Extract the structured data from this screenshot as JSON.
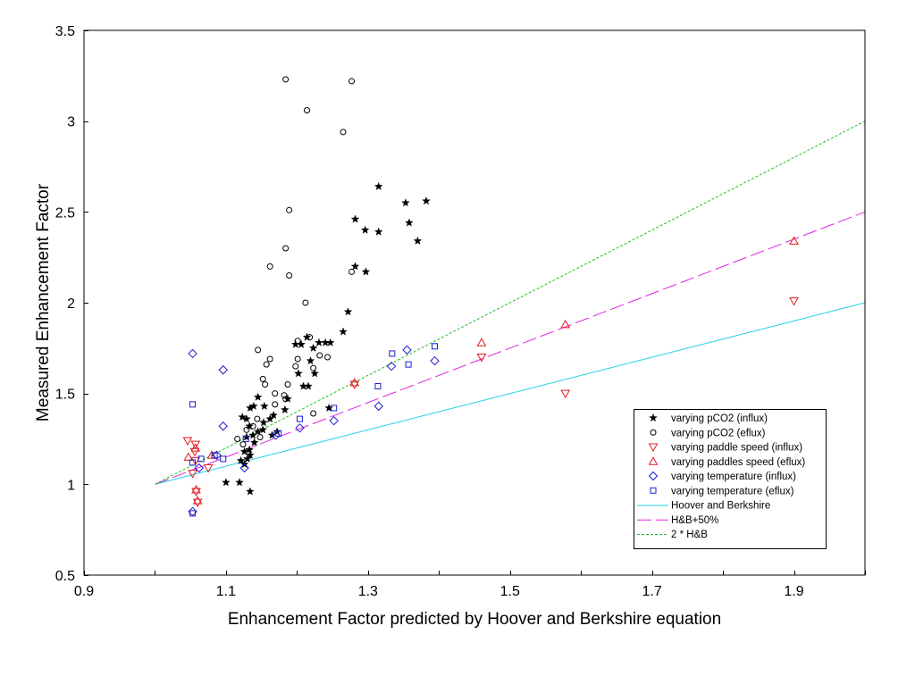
{
  "chart_data": {
    "type": "scatter",
    "xlabel": "Enhancement Factor predicted by Hoover and Berkshire equation",
    "ylabel": "Measured Enhancement Factor",
    "xlim": [
      0.9,
      2.0
    ],
    "ylim": [
      0.5,
      3.5
    ],
    "x_ticks": [
      0.9,
      1.1,
      1.3,
      1.5,
      1.7,
      1.9
    ],
    "y_ticks": [
      0.5,
      1,
      1.5,
      2,
      2.5,
      3,
      3.5
    ],
    "grid": false,
    "legend_position": "bottom-right",
    "series": [
      {
        "name": "varying pCO2 (influx)",
        "marker": "star",
        "color": "#000000",
        "points": [
          [
            1.315,
            2.64
          ],
          [
            1.353,
            2.55
          ],
          [
            1.382,
            2.56
          ],
          [
            1.358,
            2.44
          ],
          [
            1.282,
            2.46
          ],
          [
            1.296,
            2.4
          ],
          [
            1.315,
            2.39
          ],
          [
            1.37,
            2.34
          ],
          [
            1.282,
            2.2
          ],
          [
            1.297,
            2.17
          ],
          [
            1.272,
            1.95
          ],
          [
            1.265,
            1.84
          ],
          [
            1.247,
            1.78
          ],
          [
            1.24,
            1.78
          ],
          [
            1.231,
            1.78
          ],
          [
            1.223,
            1.75
          ],
          [
            1.214,
            1.81
          ],
          [
            1.206,
            1.77
          ],
          [
            1.198,
            1.77
          ],
          [
            1.219,
            1.68
          ],
          [
            1.225,
            1.61
          ],
          [
            1.202,
            1.61
          ],
          [
            1.209,
            1.54
          ],
          [
            1.216,
            1.54
          ],
          [
            1.187,
            1.47
          ],
          [
            1.183,
            1.41
          ],
          [
            1.245,
            1.42
          ],
          [
            1.167,
            1.38
          ],
          [
            1.162,
            1.36
          ],
          [
            1.154,
            1.43
          ],
          [
            1.145,
            1.48
          ],
          [
            1.139,
            1.43
          ],
          [
            1.134,
            1.42
          ],
          [
            1.129,
            1.36
          ],
          [
            1.123,
            1.37
          ],
          [
            1.133,
            1.32
          ],
          [
            1.138,
            1.27
          ],
          [
            1.145,
            1.29
          ],
          [
            1.152,
            1.3
          ],
          [
            1.153,
            1.34
          ],
          [
            1.165,
            1.27
          ],
          [
            1.172,
            1.29
          ],
          [
            1.129,
            1.26
          ],
          [
            1.14,
            1.23
          ],
          [
            1.133,
            1.19
          ],
          [
            1.126,
            1.18
          ],
          [
            1.134,
            1.16
          ],
          [
            1.13,
            1.14
          ],
          [
            1.121,
            1.13
          ],
          [
            1.126,
            1.11
          ],
          [
            1.1,
            1.01
          ],
          [
            1.119,
            1.01
          ],
          [
            1.134,
            0.96
          ]
        ]
      },
      {
        "name": "varying pCO2 (eflux)",
        "marker": "circle",
        "color": "#000000",
        "points": [
          [
            1.184,
            3.23
          ],
          [
            1.277,
            3.22
          ],
          [
            1.214,
            3.06
          ],
          [
            1.265,
            2.94
          ],
          [
            1.189,
            2.51
          ],
          [
            1.184,
            2.3
          ],
          [
            1.162,
            2.2
          ],
          [
            1.189,
            2.15
          ],
          [
            1.277,
            2.17
          ],
          [
            1.212,
            2.0
          ],
          [
            1.201,
            1.79
          ],
          [
            1.218,
            1.81
          ],
          [
            1.145,
            1.74
          ],
          [
            1.162,
            1.69
          ],
          [
            1.201,
            1.69
          ],
          [
            1.232,
            1.71
          ],
          [
            1.243,
            1.7
          ],
          [
            1.223,
            1.64
          ],
          [
            1.157,
            1.66
          ],
          [
            1.198,
            1.65
          ],
          [
            1.152,
            1.58
          ],
          [
            1.155,
            1.55
          ],
          [
            1.187,
            1.55
          ],
          [
            1.169,
            1.5
          ],
          [
            1.182,
            1.49
          ],
          [
            1.184,
            1.47
          ],
          [
            1.169,
            1.44
          ],
          [
            1.223,
            1.39
          ],
          [
            1.144,
            1.36
          ],
          [
            1.129,
            1.3
          ],
          [
            1.116,
            1.25
          ],
          [
            1.148,
            1.26
          ],
          [
            1.124,
            1.22
          ],
          [
            1.138,
            1.32
          ]
        ]
      },
      {
        "name": "varying paddle speed (influx)",
        "marker": "triangle-down",
        "color": "#E41A1C",
        "points": [
          [
            1.046,
            1.24
          ],
          [
            1.057,
            1.22
          ],
          [
            1.056,
            1.18
          ],
          [
            1.057,
            1.13
          ],
          [
            1.053,
            1.06
          ],
          [
            1.075,
            1.09
          ],
          [
            1.058,
            0.96
          ],
          [
            1.06,
            0.9
          ],
          [
            1.281,
            1.55
          ],
          [
            1.46,
            1.7
          ],
          [
            1.578,
            1.5
          ],
          [
            1.9,
            2.01
          ]
        ]
      },
      {
        "name": "varying paddles speed (eflux)",
        "marker": "triangle-up",
        "color": "#E41A1C",
        "points": [
          [
            1.047,
            1.15
          ],
          [
            1.057,
            1.2
          ],
          [
            1.08,
            1.16
          ],
          [
            1.058,
            0.97
          ],
          [
            1.06,
            0.91
          ],
          [
            1.281,
            1.56
          ],
          [
            1.46,
            1.78
          ],
          [
            1.578,
            1.88
          ],
          [
            1.9,
            2.34
          ]
        ]
      },
      {
        "name": "varying temperature (influx)",
        "marker": "diamond",
        "color": "#1C1CCF",
        "points": [
          [
            1.053,
            1.72
          ],
          [
            1.096,
            1.63
          ],
          [
            1.096,
            1.32
          ],
          [
            1.087,
            1.16
          ],
          [
            1.062,
            1.09
          ],
          [
            1.126,
            1.09
          ],
          [
            1.053,
            0.85
          ],
          [
            1.17,
            1.27
          ],
          [
            1.204,
            1.31
          ],
          [
            1.252,
            1.35
          ],
          [
            1.315,
            1.43
          ],
          [
            1.333,
            1.65
          ],
          [
            1.355,
            1.74
          ],
          [
            1.394,
            1.68
          ]
        ]
      },
      {
        "name": "varying temperature (eflux)",
        "marker": "square",
        "color": "#1C1CCF",
        "points": [
          [
            1.053,
            1.44
          ],
          [
            1.053,
            1.12
          ],
          [
            1.053,
            0.84
          ],
          [
            1.065,
            1.14
          ],
          [
            1.084,
            1.16
          ],
          [
            1.096,
            1.14
          ],
          [
            1.128,
            1.25
          ],
          [
            1.174,
            1.28
          ],
          [
            1.204,
            1.36
          ],
          [
            1.252,
            1.42
          ],
          [
            1.314,
            1.54
          ],
          [
            1.334,
            1.72
          ],
          [
            1.357,
            1.66
          ],
          [
            1.394,
            1.76
          ]
        ]
      }
    ],
    "lines": [
      {
        "name": "Hoover and Berkshire",
        "color": "#1FD0E6",
        "style": "solid",
        "points": [
          [
            1,
            1
          ],
          [
            2,
            2
          ]
        ]
      },
      {
        "name": "H&B+50%",
        "color": "#E022E0",
        "style": "long-dash",
        "points": [
          [
            1,
            1
          ],
          [
            2,
            2.5
          ]
        ]
      },
      {
        "name": "2 * H&B",
        "color": "#22C022",
        "style": "short-dash",
        "points": [
          [
            1,
            1
          ],
          [
            2,
            3
          ]
        ]
      }
    ]
  }
}
